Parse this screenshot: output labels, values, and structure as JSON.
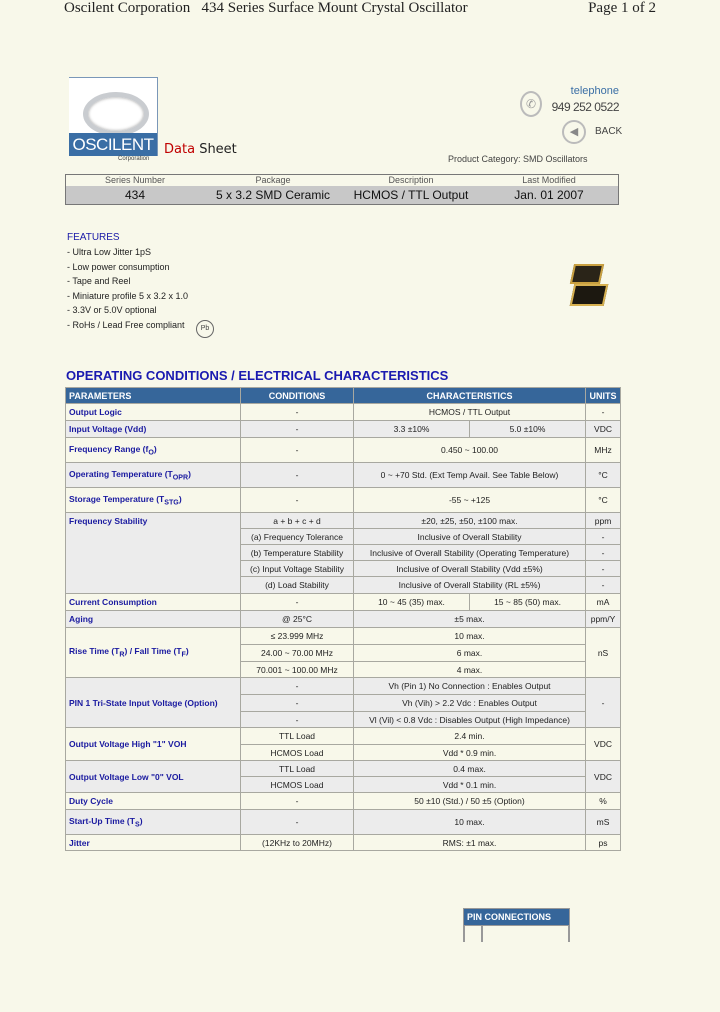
{
  "header": {
    "title": "Oscilent Corporation   434 Series Surface Mount Crystal Oscillator",
    "page": "Page 1 of 2"
  },
  "logo": {
    "brand": "OSCILENT",
    "sub": "Corporation"
  },
  "datasheet": {
    "word1": "Data",
    "word2": "Sheet"
  },
  "contact": {
    "label": "telephone",
    "phone": "949 252 0522",
    "back": "BACK",
    "icons": [
      "phone-icon",
      "back-arrow-icon"
    ]
  },
  "category": "Product Category: SMD Oscillators",
  "info": {
    "headers": [
      "Series Number",
      "Package",
      "Description",
      "Last Modified"
    ],
    "values": [
      "434",
      "5 x 3.2 SMD Ceramic",
      "HCMOS / TTL Output",
      "Jan. 01 2007"
    ]
  },
  "features": {
    "title": "FEATURES",
    "items": [
      "- Ultra Low Jitter 1pS",
      "- Low power consumption",
      "- Tape and Reel",
      "- Miniature profile 5 x 3.2 x 1.0",
      "- 3.3V or 5.0V optional",
      "- RoHs / Lead Free compliant"
    ],
    "rohs_badge": "Pb"
  },
  "section_title": "OPERATING CONDITIONS / ELECTRICAL CHARACTERISTICS",
  "spec": {
    "headers": [
      "PARAMETERS",
      "CONDITIONS",
      "CHARACTERISTICS",
      "UNITS"
    ],
    "colors": {
      "header": "#36669a",
      "param_text": "#1a1aa0",
      "row_a": "#f8f8ea",
      "row_b": "#ececec"
    },
    "groups": [
      {
        "param": [
          "Output Logic"
        ],
        "unit": "-",
        "lines": [
          {
            "cond": "-",
            "char": "HCMOS / TTL Output"
          }
        ]
      },
      {
        "param": [
          "Input Voltage (Vdd)"
        ],
        "unit": "VDC",
        "lines": [
          {
            "cond": "-",
            "char": [
              "3.3 ±10%",
              "5.0 ±10%"
            ]
          }
        ]
      },
      {
        "param": [
          "Frequency Range (f",
          "O",
          ")"
        ],
        "unit": "MHz",
        "lines": [
          {
            "cond": "-",
            "char": "0.450 ~ 100.00"
          }
        ]
      },
      {
        "param": [
          "Operating Temperature (T",
          "OPR",
          ")"
        ],
        "unit": "°C",
        "lines": [
          {
            "cond": "-",
            "char": "0 ~ +70 Std. (Ext Temp Avail. See Table Below)"
          }
        ]
      },
      {
        "param": [
          "Storage Temperature (T",
          "STG",
          ")"
        ],
        "unit": "°C",
        "lines": [
          {
            "cond": "-",
            "char": "-55 ~ +125"
          }
        ]
      },
      {
        "param": [
          "Frequency Stability"
        ],
        "unit": "ppm",
        "sub_units": [
          "-",
          "-",
          "-",
          "-"
        ],
        "lines": [
          {
            "cond": "a + b + c + d",
            "char": "±20, ±25, ±50, ±100 max."
          },
          {
            "cond": "(a) Frequency Tolerance",
            "char": "Inclusive of Overall Stability"
          },
          {
            "cond": "(b) Temperature Stability",
            "char": "Inclusive of Overall Stability (Operating Temperature)"
          },
          {
            "cond": "(c) Input Voltage Stability",
            "char": "Inclusive of Overall Stability (Vdd ±5%)"
          },
          {
            "cond": "(d) Load Stability",
            "char": "Inclusive of Overall Stability (RL ±5%)"
          }
        ]
      },
      {
        "param": [
          "Current Consumption"
        ],
        "unit": "mA",
        "lines": [
          {
            "cond": "-",
            "char": [
              "10 ~ 45 (35) max.",
              "15 ~ 85 (50) max."
            ]
          }
        ]
      },
      {
        "param": [
          "Aging"
        ],
        "unit": "ppm/Y",
        "lines": [
          {
            "cond": "@ 25°C",
            "char": "±5 max."
          }
        ]
      },
      {
        "param": [
          "Rise Time (T",
          "R",
          ") / Fall Time (T",
          "F",
          ")"
        ],
        "unit": "nS",
        "lines": [
          {
            "cond": "≤ 23.999 MHz",
            "char": "10 max."
          },
          {
            "cond": "24.00 ~ 70.00 MHz",
            "char": "6 max."
          },
          {
            "cond": "70.001 ~ 100.00 MHz",
            "char": "4 max."
          }
        ]
      },
      {
        "param": [
          "PIN 1 Tri-State Input Voltage (Option)"
        ],
        "unit": "-",
        "lines": [
          {
            "cond": "-",
            "char": "Vh (Pin 1) No Connection : Enables Output"
          },
          {
            "cond": "-",
            "char": "Vh (Vih) > 2.2 Vdc : Enables Output"
          },
          {
            "cond": "-",
            "char": "Vl (Vil) < 0.8 Vdc : Disables Output (High Impedance)"
          }
        ]
      },
      {
        "param": [
          "Output Voltage High \"1\" VOH"
        ],
        "unit": "VDC",
        "lines": [
          {
            "cond": "TTL Load",
            "char": "2.4 min."
          },
          {
            "cond": "HCMOS Load",
            "char": "Vdd * 0.9 min."
          }
        ]
      },
      {
        "param": [
          "Output Voltage Low \"0\" VOL"
        ],
        "unit": "VDC",
        "lines": [
          {
            "cond": "TTL Load",
            "char": "0.4 max."
          },
          {
            "cond": "HCMOS Load",
            "char": "Vdd * 0.1 min."
          }
        ]
      },
      {
        "param": [
          "Duty Cycle"
        ],
        "unit": "%",
        "lines": [
          {
            "cond": "-",
            "char": "50 ±10 (Std.) / 50 ±5 (Option)"
          }
        ]
      },
      {
        "param": [
          "Start-Up Time (T",
          "S",
          ")"
        ],
        "unit": "mS",
        "lines": [
          {
            "cond": "-",
            "char": "10 max."
          }
        ]
      },
      {
        "param": [
          "Jitter"
        ],
        "unit": "ps",
        "lines": [
          {
            "cond": "(12KHz to 20MHz)",
            "char": "RMS: ±1 max."
          }
        ]
      }
    ]
  },
  "pins": {
    "title": "PIN CONNECTIONS"
  }
}
